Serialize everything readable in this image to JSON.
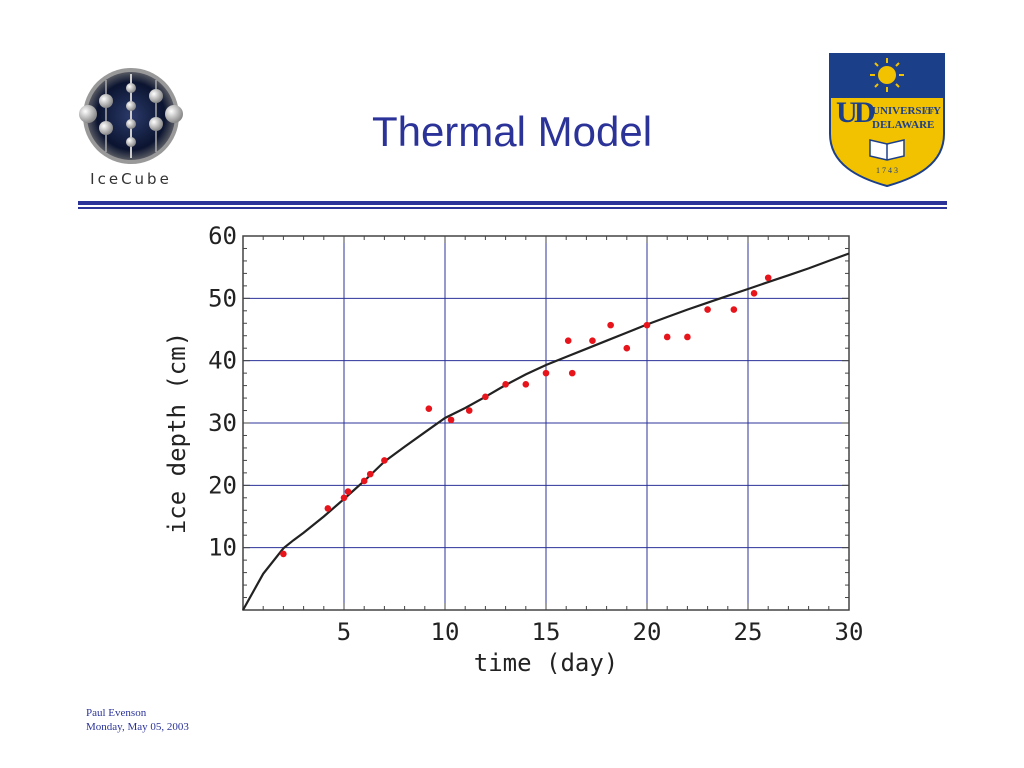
{
  "slide": {
    "title": "Thermal Model",
    "footer": {
      "author": "Paul Evenson",
      "date": "Monday, May 05, 2003"
    }
  },
  "logos": {
    "left": {
      "text": "IceCube"
    },
    "right": {
      "line1": "UNIVERSITY",
      "line1_small": "OF",
      "line2": "DELAWARE",
      "year": "1 7 4 3"
    }
  },
  "colors": {
    "title": "#2b3399",
    "grid": "#2b3399",
    "points": "#e8141b",
    "curve": "#222222"
  },
  "chart_data": {
    "type": "scatter",
    "xlabel": "time (day)",
    "ylabel": "ice depth (cm)",
    "xlim": [
      0,
      30
    ],
    "ylim": [
      0,
      60
    ],
    "xticks": [
      5,
      10,
      15,
      20,
      25,
      30
    ],
    "yticks": [
      10,
      20,
      30,
      40,
      50,
      60
    ],
    "grid": true,
    "series": [
      {
        "kind": "points",
        "x": [
          2,
          4.2,
          5,
          5.2,
          6,
          6.3,
          7,
          9.2,
          10.3,
          11.2,
          12,
          13,
          14,
          15,
          16.1,
          16.3,
          17.3,
          18.2,
          19,
          20,
          21,
          22,
          23,
          24.3,
          25.3,
          26
        ],
        "y": [
          9,
          16.3,
          18,
          19,
          20.7,
          21.8,
          24,
          32.3,
          30.5,
          32,
          34.2,
          36.2,
          36.2,
          38,
          43.2,
          38,
          43.2,
          45.7,
          42,
          45.7,
          43.8,
          43.8,
          48.2,
          48.2,
          50.8,
          53.3
        ]
      },
      {
        "kind": "curve",
        "x": [
          0,
          1,
          2,
          2.5,
          3,
          4,
          5,
          6,
          7,
          8,
          9,
          10,
          11,
          12,
          13,
          14,
          15,
          16,
          17,
          18,
          19,
          20,
          21,
          22,
          23,
          24,
          25,
          26,
          27,
          28,
          29,
          30
        ],
        "y": [
          0,
          5.8,
          9.9,
          11.2,
          12.4,
          15,
          17.8,
          20.7,
          23.8,
          26.2,
          28.5,
          30.8,
          32.4,
          34.2,
          36.1,
          37.8,
          39.3,
          40.6,
          41.9,
          43.2,
          44.5,
          45.8,
          47,
          48.2,
          49.3,
          50.4,
          51.5,
          52.6,
          53.7,
          54.8,
          56,
          57.2
        ]
      }
    ]
  }
}
